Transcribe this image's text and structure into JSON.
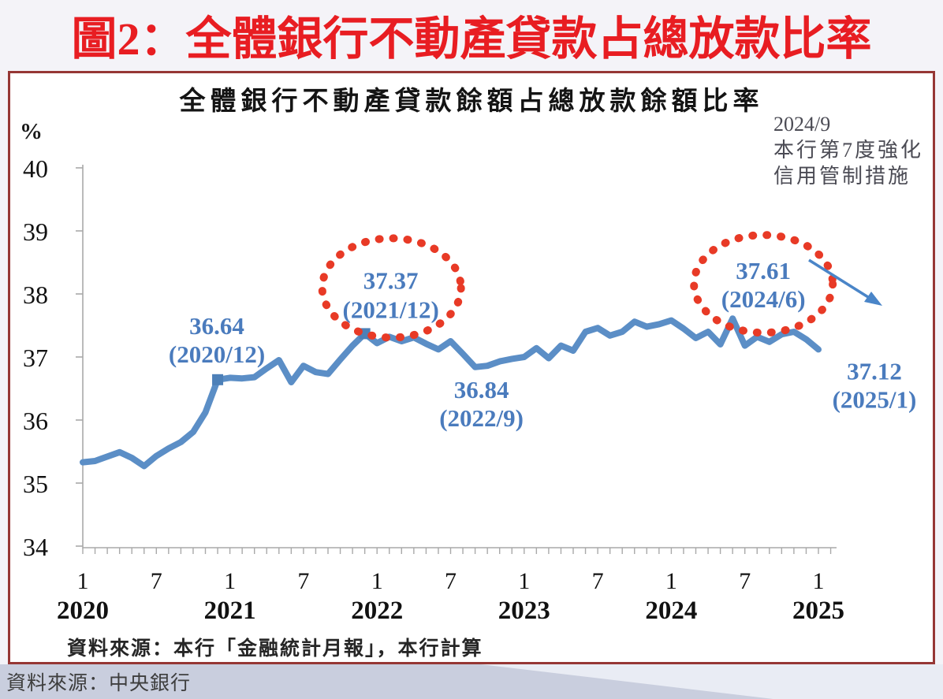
{
  "page": {
    "title": "圖2：全體銀行不動產貸款占總放款比率",
    "footer_source": "資料來源：中央銀行"
  },
  "colors": {
    "line": "#5b8ec6",
    "marker": "#4d80b8",
    "annotation_text": "#4a7bbd",
    "ellipse": "#e83a26",
    "arrow": "#4a85c8",
    "axis": "#a9a9a9",
    "tick_label": "#111111",
    "title_red": "#e81d22",
    "panel_border": "#963735",
    "footer_bg": "#c9cede",
    "footer_wedge": "#e9ecf4"
  },
  "chart_data": {
    "type": "line",
    "title": "全體銀行不動產貸款餘額占總放款餘額比率",
    "xlabel": "",
    "ylabel": "%",
    "ylim": [
      34,
      40
    ],
    "yticks": [
      40,
      39,
      38,
      37,
      36,
      35,
      34
    ],
    "grid": false,
    "legend": false,
    "x_tick_month_labels": [
      "1",
      "7",
      "1",
      "7",
      "1",
      "7",
      "1",
      "7",
      "1",
      "7",
      "1"
    ],
    "x_tick_year_labels": [
      "2020",
      "2021",
      "2022",
      "2023",
      "2024",
      "2025"
    ],
    "source_note": "資料來源：本行「金融統計月報」，本行計算",
    "policy_note": {
      "date": "2024/9",
      "lines": [
        "本行第7度強化",
        "信用管制措施"
      ]
    },
    "x": [
      "2020/1",
      "2020/2",
      "2020/3",
      "2020/4",
      "2020/5",
      "2020/6",
      "2020/7",
      "2020/8",
      "2020/9",
      "2020/10",
      "2020/11",
      "2020/12",
      "2021/1",
      "2021/2",
      "2021/3",
      "2021/4",
      "2021/5",
      "2021/6",
      "2021/7",
      "2021/8",
      "2021/9",
      "2021/10",
      "2021/11",
      "2021/12",
      "2022/1",
      "2022/2",
      "2022/3",
      "2022/4",
      "2022/5",
      "2022/6",
      "2022/7",
      "2022/8",
      "2022/9",
      "2022/10",
      "2022/11",
      "2022/12",
      "2023/1",
      "2023/2",
      "2023/3",
      "2023/4",
      "2023/5",
      "2023/6",
      "2023/7",
      "2023/8",
      "2023/9",
      "2023/10",
      "2023/11",
      "2023/12",
      "2024/1",
      "2024/2",
      "2024/3",
      "2024/4",
      "2024/5",
      "2024/6",
      "2024/7",
      "2024/8",
      "2024/9",
      "2024/10",
      "2024/11",
      "2024/12",
      "2025/1"
    ],
    "series": [
      {
        "name": "全體銀行不動產貸款餘額占總放款餘額比率",
        "values": [
          35.33,
          35.35,
          35.42,
          35.49,
          35.4,
          35.27,
          35.43,
          35.55,
          35.65,
          35.81,
          36.12,
          36.64,
          36.67,
          36.66,
          36.68,
          36.82,
          36.95,
          36.6,
          36.86,
          36.76,
          36.73,
          36.96,
          37.18,
          37.37,
          37.22,
          37.32,
          37.25,
          37.31,
          37.21,
          37.12,
          37.25,
          37.05,
          36.84,
          36.86,
          36.93,
          36.97,
          37.0,
          37.14,
          36.98,
          37.18,
          37.1,
          37.4,
          37.46,
          37.34,
          37.4,
          37.56,
          37.48,
          37.52,
          37.58,
          37.45,
          37.3,
          37.4,
          37.2,
          37.61,
          37.18,
          37.32,
          37.24,
          37.36,
          37.4,
          37.28,
          37.12
        ]
      }
    ],
    "markers": [
      {
        "x": "2020/12"
      },
      {
        "x": "2021/12"
      }
    ],
    "annotations": [
      {
        "label": "36.64",
        "sub": "(2020/12)",
        "x": "2020/12",
        "value": 36.64,
        "circled": false
      },
      {
        "label": "37.37",
        "sub": "(2021/12)",
        "x": "2021/12",
        "value": 37.37,
        "circled": true
      },
      {
        "label": "36.84",
        "sub": "(2022/9)",
        "x": "2022/9",
        "value": 36.84,
        "circled": false
      },
      {
        "label": "37.61",
        "sub": "(2024/6)",
        "x": "2024/6",
        "value": 37.61,
        "circled": true
      },
      {
        "label": "37.12",
        "sub": "(2025/1)",
        "x": "2025/1",
        "value": 37.12,
        "circled": false
      }
    ]
  }
}
